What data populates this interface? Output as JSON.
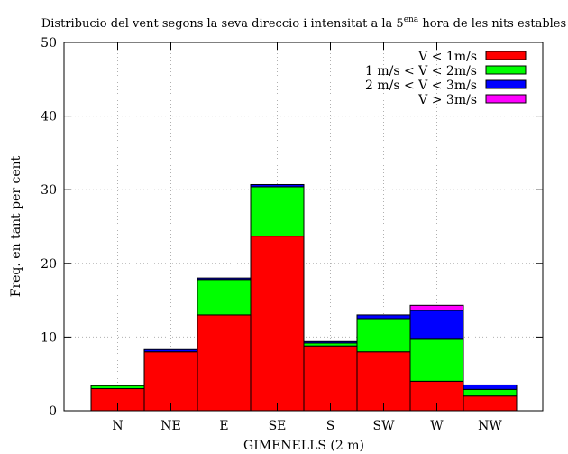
{
  "chart_data": {
    "type": "bar",
    "stacked": true,
    "title_pre": "Distribucio del vent segons la seva direccio i intensitat a la 5",
    "title_sup": "ena",
    "title_post": " hora de les nits estables",
    "xlabel": "GIMENELLS (2 m)",
    "ylabel": "Freq. en tant per cent",
    "ylim": [
      0,
      50
    ],
    "yticks": [
      0,
      10,
      20,
      30,
      40,
      50
    ],
    "grid": true,
    "legend_position": "top-right",
    "categories": [
      "N",
      "NE",
      "E",
      "SE",
      "S",
      "SW",
      "W",
      "NW"
    ],
    "series": [
      {
        "name": "V < 1m/s",
        "color": "#ff0000",
        "values": [
          3.0,
          8.0,
          13.0,
          23.7,
          8.8,
          8.0,
          4.0,
          2.0
        ]
      },
      {
        "name": "1 m/s < V < 2m/s",
        "color": "#00ff00",
        "values": [
          0.4,
          0.0,
          4.8,
          6.7,
          0.4,
          4.5,
          5.7,
          0.9
        ]
      },
      {
        "name": "2 m/s < V < 3m/s",
        "color": "#0000ff",
        "values": [
          0.0,
          0.3,
          0.2,
          0.3,
          0.2,
          0.5,
          3.9,
          0.6
        ]
      },
      {
        "name": "V > 3m/s",
        "color": "#ff00ff",
        "values": [
          0.0,
          0.0,
          0.0,
          0.0,
          0.0,
          0.0,
          0.7,
          0.0
        ]
      }
    ]
  }
}
